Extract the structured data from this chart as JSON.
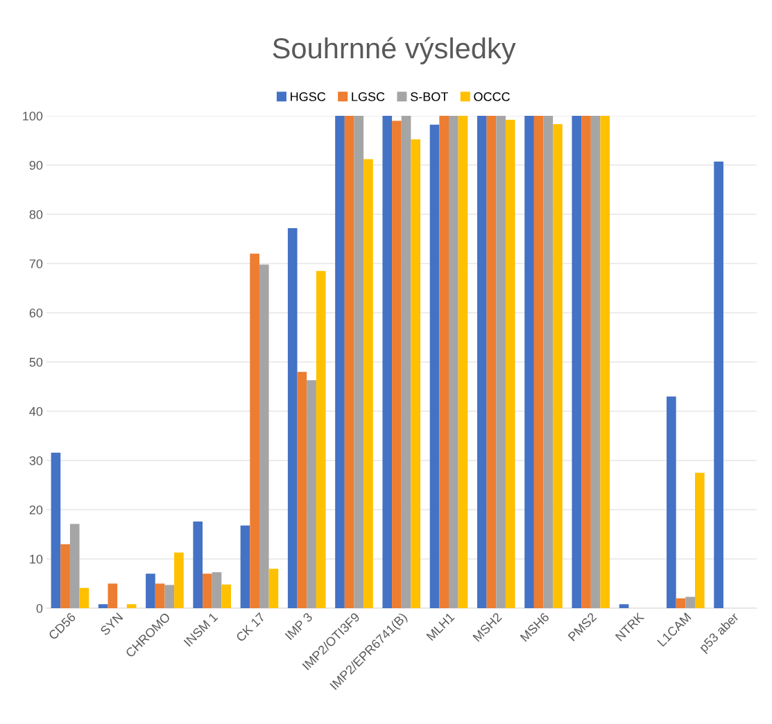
{
  "chart_data": {
    "type": "bar",
    "title": "Souhrnné výsledky",
    "categories": [
      "CD56",
      "SYN",
      "CHROMO",
      "INSM 1",
      "CK 17",
      "IMP 3",
      "IMP2/OTI3F9",
      "IMP2/EPR6741(B)",
      "MLH1",
      "MSH2",
      "MSH6",
      "PMS2",
      "NTRK",
      "L1CAM",
      "p53 aber"
    ],
    "series": [
      {
        "name": "HGSC",
        "color": "#4472c4",
        "values": [
          31.6,
          0.8,
          7,
          17.6,
          16.8,
          77.2,
          100,
          100,
          98.2,
          100,
          100,
          100,
          0.8,
          43,
          90.7
        ]
      },
      {
        "name": "LGSC",
        "color": "#ed7d31",
        "values": [
          13,
          5,
          5,
          7,
          72,
          48,
          100,
          99,
          100,
          100,
          100,
          100,
          0,
          2,
          0
        ]
      },
      {
        "name": "S-BOT",
        "color": "#a5a5a5",
        "values": [
          17.1,
          0,
          4.7,
          7.3,
          69.8,
          46.3,
          100,
          100,
          100,
          100,
          100,
          100,
          0,
          2.3,
          0
        ]
      },
      {
        "name": "OCCC",
        "color": "#ffc000",
        "values": [
          4.1,
          0.8,
          11.3,
          4.8,
          8,
          68.5,
          91.2,
          95.2,
          100,
          99.2,
          98.3,
          100,
          0,
          27.5,
          0
        ]
      }
    ],
    "ylim": [
      0,
      100
    ],
    "yticks": [
      0,
      10,
      20,
      30,
      40,
      50,
      60,
      70,
      80,
      90,
      100
    ],
    "grid": "y",
    "legend": "top"
  }
}
